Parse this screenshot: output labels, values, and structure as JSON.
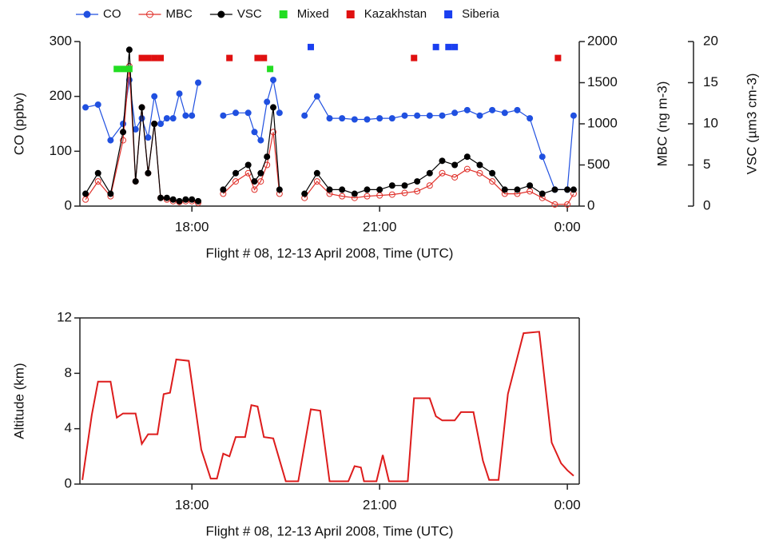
{
  "chart_data": [
    {
      "type": "line",
      "legend": "top",
      "x_label": "Flight # 08, 12-13 April 2008, Time (UTC)",
      "y_label": "CO (ppbv)",
      "y2_label": "MBC (ng m-3)",
      "y3_label": "VSC (µm3 cm-3)",
      "xlim": [
        16.21,
        24.19
      ],
      "xticks": [
        {
          "value": 18,
          "label": "18:00"
        },
        {
          "value": 21,
          "label": "21:00"
        },
        {
          "value": 24,
          "label": "0:00"
        }
      ],
      "ylim": [
        0,
        300
      ],
      "yticks": [
        0,
        100,
        200,
        300
      ],
      "y2lim": [
        0,
        2000
      ],
      "y2ticks": [
        0,
        500,
        1000,
        1500,
        2000
      ],
      "y3lim": [
        0,
        20
      ],
      "y3ticks": [
        0,
        5,
        10,
        15,
        20
      ],
      "x": [
        16.3,
        16.5,
        16.7,
        16.9,
        17.0,
        17.1,
        17.2,
        17.3,
        17.4,
        17.5,
        17.6,
        17.7,
        17.8,
        17.9,
        18.0,
        18.1,
        18.2,
        18.5,
        18.7,
        18.9,
        19.0,
        19.1,
        19.2,
        19.3,
        19.4,
        19.5,
        19.8,
        20.0,
        20.2,
        20.4,
        20.6,
        20.8,
        21.0,
        21.2,
        21.4,
        21.6,
        21.8,
        22.0,
        22.2,
        22.4,
        22.6,
        22.8,
        23.0,
        23.2,
        23.4,
        23.6,
        23.8,
        24.0,
        24.1
      ],
      "series": [
        {
          "name": "CO",
          "color": "#2050e0",
          "axis": "y",
          "marker": "filled",
          "values": [
            180,
            185,
            120,
            150,
            230,
            140,
            160,
            125,
            200,
            150,
            160,
            160,
            205,
            165,
            165,
            225,
            null,
            165,
            170,
            170,
            135,
            120,
            190,
            230,
            170,
            null,
            165,
            200,
            160,
            160,
            158,
            158,
            160,
            160,
            165,
            165,
            165,
            165,
            170,
            175,
            165,
            175,
            170,
            175,
            160,
            90,
            30,
            30,
            165
          ]
        },
        {
          "name": "MBC",
          "color": "#e0302a",
          "axis": "y2",
          "marker": "open",
          "values": [
            80,
            300,
            120,
            800,
            1700,
            300,
            1200,
            400,
            1000,
            100,
            80,
            60,
            50,
            60,
            60,
            40,
            null,
            150,
            300,
            400,
            200,
            300,
            500,
            900,
            150,
            null,
            100,
            300,
            150,
            120,
            100,
            120,
            130,
            140,
            160,
            180,
            250,
            400,
            350,
            450,
            400,
            300,
            150,
            150,
            180,
            100,
            20,
            20,
            150
          ]
        },
        {
          "name": "VSC",
          "color": "#000000",
          "axis": "y3",
          "marker": "filled",
          "values": [
            1.5,
            4,
            1.5,
            9,
            19,
            3,
            12,
            4,
            10,
            1,
            1,
            0.8,
            0.6,
            0.8,
            0.8,
            0.6,
            null,
            2,
            4,
            5,
            3,
            4,
            6,
            12,
            2,
            null,
            1.5,
            4,
            2,
            2,
            1.5,
            2,
            2,
            2.5,
            2.5,
            3,
            4,
            5.5,
            5,
            6,
            5,
            4,
            2,
            2,
            2.5,
            1.5,
            2,
            2,
            2
          ]
        },
        {
          "name": "Mixed",
          "color": "#22dd22",
          "axis": "y",
          "marker": "square",
          "x": [
            16.8,
            16.9,
            17.0,
            19.25
          ],
          "values": [
            250,
            250,
            250,
            250
          ]
        },
        {
          "name": "Kazakhstan",
          "color": "#e01010",
          "axis": "y",
          "marker": "square",
          "x": [
            17.2,
            17.3,
            17.4,
            17.5,
            18.6,
            19.05,
            19.15,
            21.55,
            23.85
          ],
          "values": [
            270,
            270,
            270,
            270,
            270,
            270,
            270,
            270,
            270
          ]
        },
        {
          "name": "Siberia",
          "color": "#1a3ff0",
          "axis": "y",
          "marker": "square",
          "x": [
            19.9,
            21.9,
            22.1,
            22.2
          ],
          "values": [
            290,
            290,
            290,
            290
          ]
        }
      ]
    },
    {
      "type": "line",
      "x_label": "Flight # 08, 12-13 April 2008, Time (UTC)",
      "y_label": "Altitude (km)",
      "xlim": [
        16.21,
        24.19
      ],
      "xticks": [
        {
          "value": 18,
          "label": "18:00"
        },
        {
          "value": 21,
          "label": "21:00"
        },
        {
          "value": 24,
          "label": "0:00"
        }
      ],
      "ylim": [
        0,
        12
      ],
      "yticks": [
        0,
        4,
        8,
        12
      ],
      "x": [
        16.25,
        16.4,
        16.5,
        16.7,
        16.8,
        16.9,
        17.1,
        17.2,
        17.3,
        17.45,
        17.55,
        17.65,
        17.75,
        17.95,
        18.15,
        18.3,
        18.4,
        18.5,
        18.6,
        18.7,
        18.85,
        18.95,
        19.05,
        19.15,
        19.3,
        19.5,
        19.7,
        19.9,
        20.05,
        20.2,
        20.5,
        20.6,
        20.7,
        20.75,
        20.95,
        21.05,
        21.15,
        21.45,
        21.55,
        21.8,
        21.9,
        22.0,
        22.2,
        22.3,
        22.5,
        22.65,
        22.75,
        22.9,
        23.05,
        23.3,
        23.55,
        23.75,
        23.9,
        24.0,
        24.1
      ],
      "series": [
        {
          "color": "#dd1c1c",
          "axis": "y",
          "marker": "none",
          "values": [
            0.3,
            5,
            7.4,
            7.4,
            4.8,
            5.1,
            5.1,
            2.9,
            3.6,
            3.6,
            6.5,
            6.6,
            9,
            8.9,
            2.5,
            0.4,
            0.4,
            2.2,
            2,
            3.4,
            3.4,
            5.7,
            5.6,
            3.4,
            3.3,
            0.2,
            0.2,
            5.4,
            5.3,
            0.2,
            0.2,
            1.3,
            1.2,
            0.2,
            0.2,
            2.1,
            0.2,
            0.2,
            6.2,
            6.2,
            4.9,
            4.6,
            4.6,
            5.2,
            5.2,
            1.7,
            0.3,
            0.3,
            6.5,
            10.9,
            11,
            3,
            1.5,
            1.0,
            0.6
          ]
        }
      ]
    }
  ]
}
